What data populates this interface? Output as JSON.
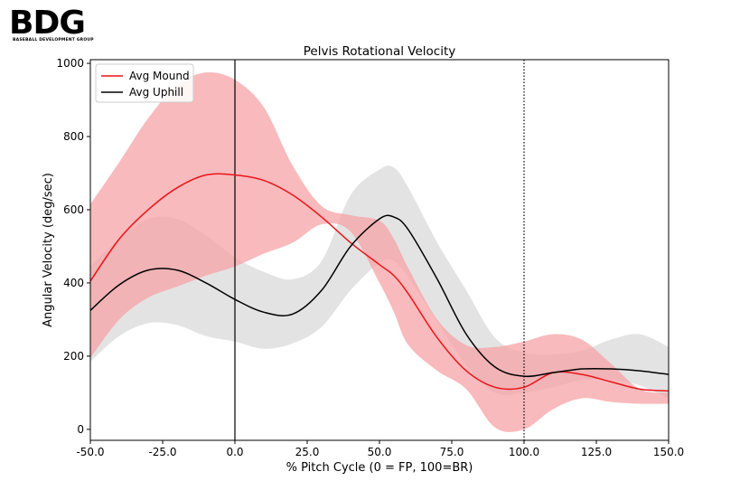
{
  "logo": {
    "text": "BDG",
    "subtitle": "BASEBALL DEVELOPMENT GROUP"
  },
  "chart_data": {
    "type": "line",
    "title": "Pelvis Rotational Velocity",
    "xlabel": "% Pitch Cycle (0 = FP, 100=BR)",
    "ylabel": "Angular Velocity (deg/sec)",
    "xlim": [
      -50,
      150
    ],
    "ylim": [
      -30,
      1010
    ],
    "xticks": [
      -50,
      -25,
      0,
      25,
      50,
      75,
      100,
      125,
      150
    ],
    "xtick_labels": [
      "-50.0",
      "-25.0",
      "0.0",
      "25.0",
      "50.0",
      "75.0",
      "100.0",
      "125.0",
      "150.0"
    ],
    "yticks": [
      0,
      200,
      400,
      600,
      800,
      1000
    ],
    "ytick_labels": [
      "0",
      "200",
      "400",
      "600",
      "800",
      "1000"
    ],
    "grid": false,
    "legend_position": "top-left",
    "vlines": [
      {
        "x": 0,
        "style": "solid"
      },
      {
        "x": 100,
        "style": "dotted"
      }
    ],
    "x": [
      -50,
      -40,
      -30,
      -20,
      -10,
      0,
      10,
      20,
      30,
      40,
      50,
      55,
      60,
      70,
      80,
      90,
      100,
      110,
      120,
      130,
      140,
      150
    ],
    "series": [
      {
        "name": "Avg Mound",
        "color": "#e8141b",
        "band_color": "#f5a3a6",
        "values": [
          405,
          520,
          600,
          660,
          695,
          695,
          680,
          640,
          580,
          510,
          450,
          420,
          370,
          250,
          160,
          115,
          115,
          155,
          150,
          130,
          110,
          105
        ],
        "upper": [
          615,
          730,
          850,
          940,
          975,
          955,
          880,
          720,
          610,
          585,
          570,
          520,
          440,
          300,
          230,
          225,
          240,
          260,
          245,
          180,
          110,
          100
        ],
        "lower": [
          195,
          300,
          360,
          390,
          420,
          445,
          480,
          510,
          560,
          540,
          400,
          320,
          230,
          160,
          110,
          5,
          0,
          55,
          85,
          75,
          70,
          70
        ]
      },
      {
        "name": "Avg Uphill",
        "color": "#000000",
        "band_color": "#d9d9d9",
        "values": [
          325,
          395,
          435,
          435,
          400,
          355,
          320,
          315,
          380,
          500,
          575,
          580,
          545,
          410,
          260,
          170,
          145,
          155,
          165,
          165,
          160,
          150
        ],
        "upper": [
          445,
          520,
          575,
          575,
          530,
          470,
          430,
          410,
          460,
          640,
          710,
          715,
          660,
          510,
          380,
          250,
          210,
          205,
          215,
          245,
          260,
          225
        ],
        "lower": [
          185,
          255,
          290,
          285,
          255,
          240,
          220,
          235,
          280,
          380,
          455,
          460,
          415,
          295,
          175,
          100,
          100,
          115,
          135,
          135,
          120,
          85
        ]
      }
    ]
  }
}
